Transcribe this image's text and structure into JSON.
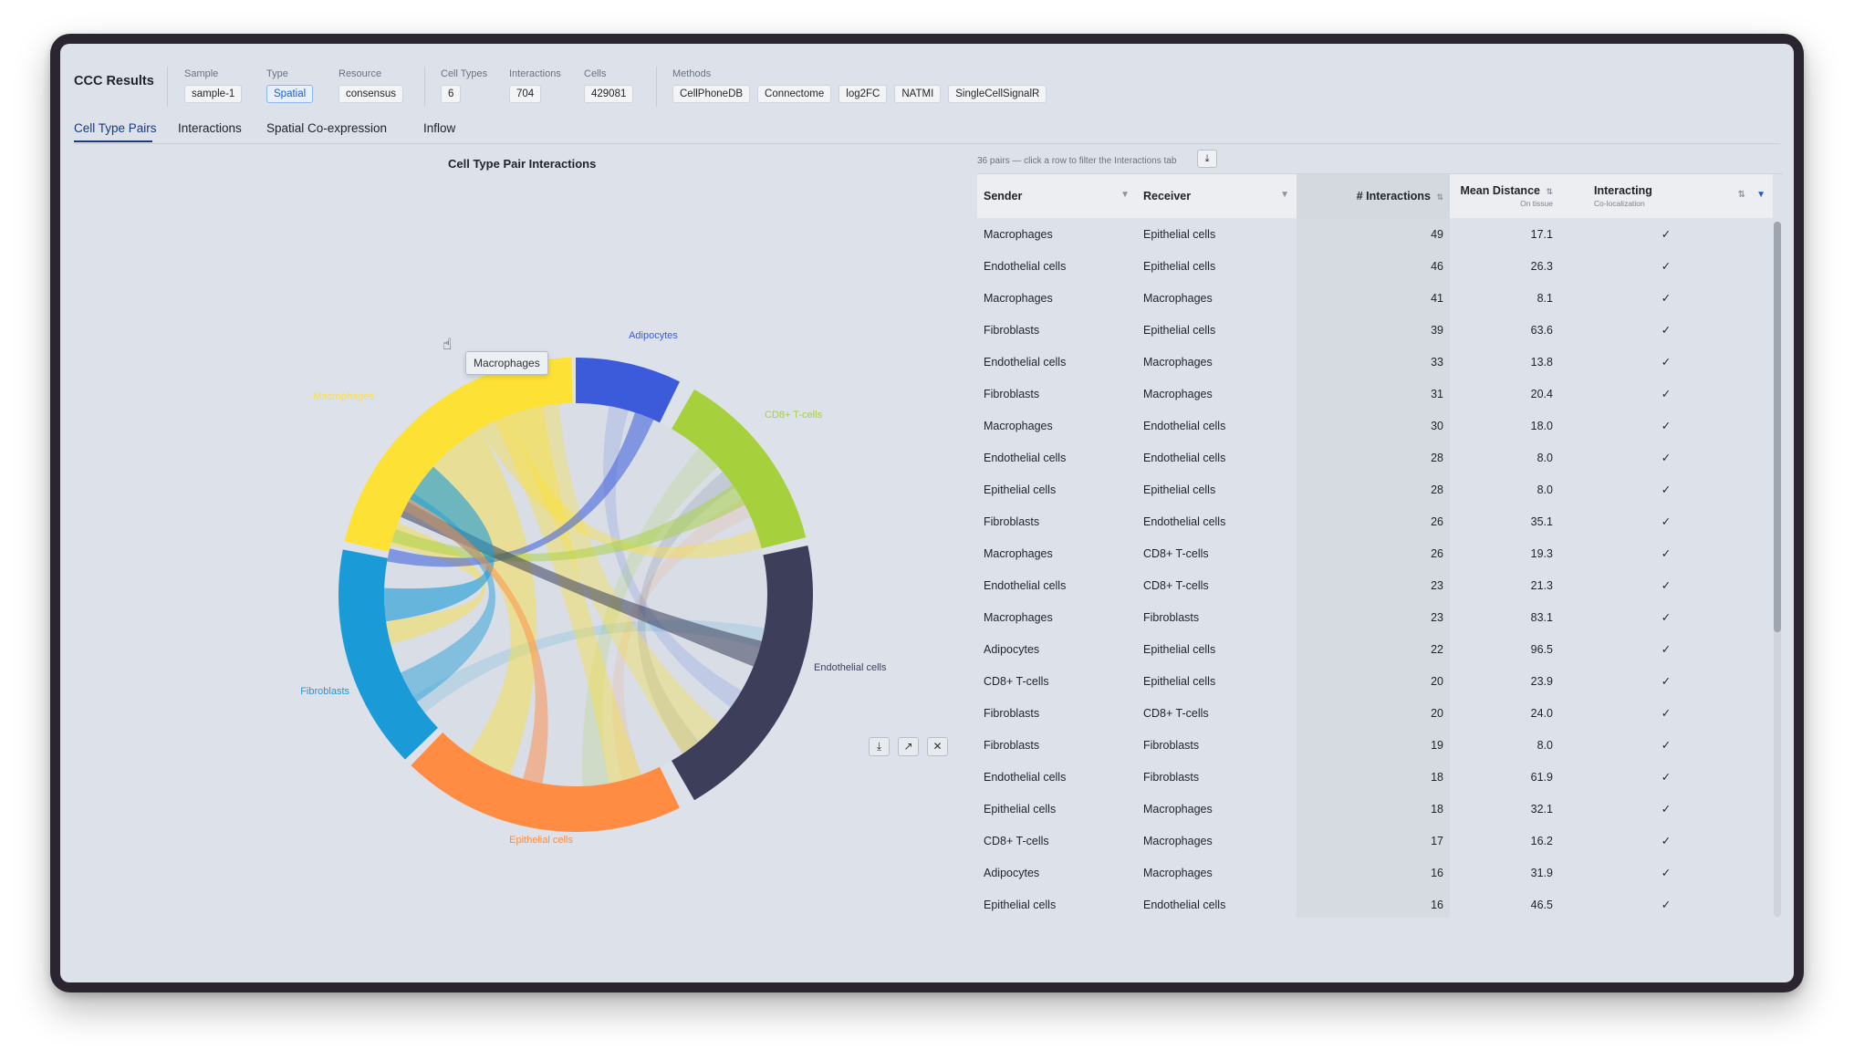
{
  "header": {
    "title": "CCC Results",
    "sample": {
      "label": "Sample",
      "value": "sample-1"
    },
    "type": {
      "label": "Type",
      "value": "Spatial"
    },
    "resource": {
      "label": "Resource",
      "value": "consensus"
    },
    "cell_types": {
      "label": "Cell Types",
      "value": "6"
    },
    "interactions": {
      "label": "Interactions",
      "value": "704"
    },
    "cells": {
      "label": "Cells",
      "value": "429081"
    },
    "methods": {
      "label": "Methods",
      "values": [
        "CellPhoneDB",
        "Connectome",
        "log2FC",
        "NATMI",
        "SingleCellSignalR"
      ]
    }
  },
  "tabs": [
    "Cell Type Pairs",
    "Interactions",
    "Spatial Co-expression",
    "Inflow"
  ],
  "active_tab": "Cell Type Pairs",
  "chart": {
    "title": "Cell Type Pair Interactions",
    "tooltip": "Macrophages",
    "cursor_icon": "hand-pointer-icon",
    "groups": [
      {
        "name": "Macrophages",
        "color": "#fde135"
      },
      {
        "name": "Adipocytes",
        "color": "#3b5bdb"
      },
      {
        "name": "CD8+ T-cells",
        "color": "#a6d13c"
      },
      {
        "name": "Endothelial cells",
        "color": "#3d3f5a"
      },
      {
        "name": "Epithelial cells",
        "color": "#ff8c42"
      },
      {
        "name": "Fibroblasts",
        "color": "#1a9bd7"
      }
    ],
    "toolbar": [
      {
        "name": "download-chart",
        "icon": "⤓"
      },
      {
        "name": "open-external",
        "icon": "↗"
      },
      {
        "name": "close-chart",
        "icon": "✕"
      }
    ]
  },
  "chart_data": {
    "type": "chord",
    "title": "Cell Type Pair Interactions",
    "groups": [
      "Macrophages",
      "Adipocytes",
      "CD8+ T-cells",
      "Endothelial cells",
      "Epithelial cells",
      "Fibroblasts"
    ]
  },
  "table": {
    "caption": "36 pairs — click a row to filter the Interactions tab",
    "columns": {
      "sender": "Sender",
      "receiver": "Receiver",
      "interactions": "# Interactions",
      "distance": "Mean Distance",
      "distance_sub": "On tissue",
      "interacting": "Interacting",
      "interacting_sub": "Co-localization"
    },
    "rows": [
      [
        "Macrophages",
        "Epithelial cells",
        "49",
        "17.1",
        "✓"
      ],
      [
        "Endothelial cells",
        "Epithelial cells",
        "46",
        "26.3",
        "✓"
      ],
      [
        "Macrophages",
        "Macrophages",
        "41",
        "8.1",
        "✓"
      ],
      [
        "Fibroblasts",
        "Epithelial cells",
        "39",
        "63.6",
        "✓"
      ],
      [
        "Endothelial cells",
        "Macrophages",
        "33",
        "13.8",
        "✓"
      ],
      [
        "Fibroblasts",
        "Macrophages",
        "31",
        "20.4",
        "✓"
      ],
      [
        "Macrophages",
        "Endothelial cells",
        "30",
        "18.0",
        "✓"
      ],
      [
        "Endothelial cells",
        "Endothelial cells",
        "28",
        "8.0",
        "✓"
      ],
      [
        "Epithelial cells",
        "Epithelial cells",
        "28",
        "8.0",
        "✓"
      ],
      [
        "Fibroblasts",
        "Endothelial cells",
        "26",
        "35.1",
        "✓"
      ],
      [
        "Macrophages",
        "CD8+ T-cells",
        "26",
        "19.3",
        "✓"
      ],
      [
        "Endothelial cells",
        "CD8+ T-cells",
        "23",
        "21.3",
        "✓"
      ],
      [
        "Macrophages",
        "Fibroblasts",
        "23",
        "83.1",
        "✓"
      ],
      [
        "Adipocytes",
        "Epithelial cells",
        "22",
        "96.5",
        "✓"
      ],
      [
        "CD8+ T-cells",
        "Epithelial cells",
        "20",
        "23.9",
        "✓"
      ],
      [
        "Fibroblasts",
        "CD8+ T-cells",
        "20",
        "24.0",
        "✓"
      ],
      [
        "Fibroblasts",
        "Fibroblasts",
        "19",
        "8.0",
        "✓"
      ],
      [
        "Endothelial cells",
        "Fibroblasts",
        "18",
        "61.9",
        "✓"
      ],
      [
        "Epithelial cells",
        "Macrophages",
        "18",
        "32.1",
        "✓"
      ],
      [
        "CD8+ T-cells",
        "Macrophages",
        "17",
        "16.2",
        "✓"
      ],
      [
        "Adipocytes",
        "Macrophages",
        "16",
        "31.9",
        "✓"
      ],
      [
        "Epithelial cells",
        "Endothelial cells",
        "16",
        "46.5",
        "✓"
      ]
    ]
  }
}
